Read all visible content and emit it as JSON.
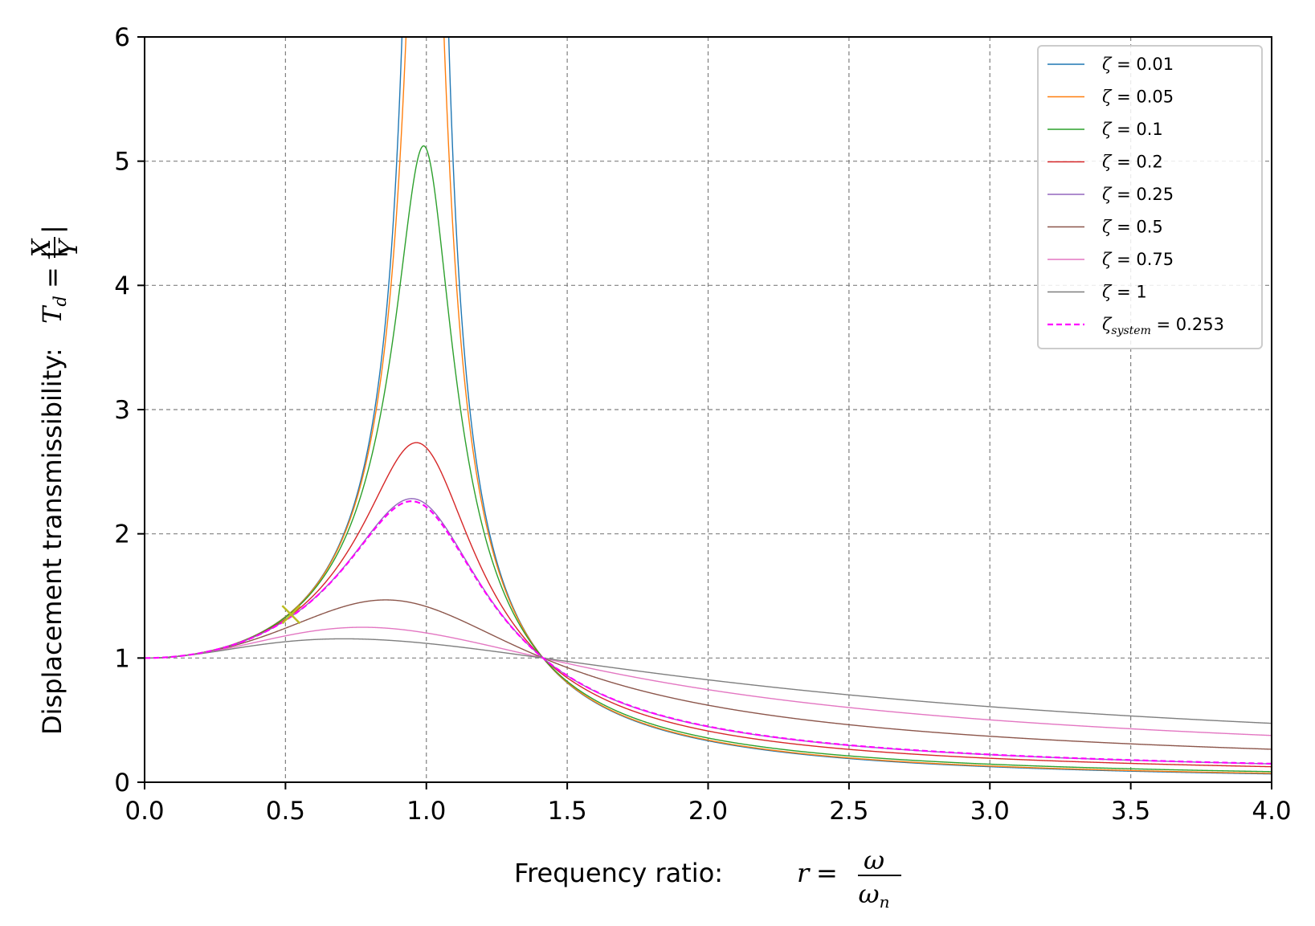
{
  "chart_data": {
    "type": "line",
    "xlabel": "Frequency ratio: r = ω/ω_n",
    "xlabel_text": "Frequency ratio: ",
    "ylabel": "Displacement transmissibility: T_d = |X/Y|",
    "ylabel_text": "Displacement transmissibility: ",
    "xlim": [
      0,
      4
    ],
    "ylim": [
      0,
      6
    ],
    "xticks": [
      "0.0",
      "0.5",
      "1.0",
      "1.5",
      "2.0",
      "2.5",
      "3.0",
      "3.5",
      "4.0"
    ],
    "yticks": [
      "0",
      "1",
      "2",
      "3",
      "4",
      "5",
      "6"
    ],
    "grid": true,
    "grid_style": "dashed",
    "legend_position": "top-right",
    "series": [
      {
        "name": "ζ = 0.01",
        "zeta": 0.01,
        "color": "#1f77b4",
        "dash": false
      },
      {
        "name": "ζ = 0.05",
        "zeta": 0.05,
        "color": "#ff7f0e",
        "dash": false
      },
      {
        "name": "ζ = 0.1",
        "zeta": 0.1,
        "color": "#2ca02c",
        "dash": false
      },
      {
        "name": "ζ = 0.2",
        "zeta": 0.2,
        "color": "#d62728",
        "dash": false
      },
      {
        "name": "ζ = 0.25",
        "zeta": 0.25,
        "color": "#9467bd",
        "dash": false
      },
      {
        "name": "ζ = 0.5",
        "zeta": 0.5,
        "color": "#8c564b",
        "dash": false
      },
      {
        "name": "ζ = 0.75",
        "zeta": 0.75,
        "color": "#e377c2",
        "dash": false
      },
      {
        "name": "ζ = 1",
        "zeta": 1.0,
        "color": "#7f7f7f",
        "dash": false
      },
      {
        "name": "ζ_system = 0.253",
        "zeta": 0.253,
        "color": "#ff00ff",
        "dash": true
      }
    ],
    "legend_labels": {
      "zeta_symbol": "ζ",
      "system_subscript": "system",
      "eq_prefix": " = "
    },
    "marker": {
      "type": "x",
      "x": 0.52,
      "y": 1.35,
      "color": "#bcbd22"
    }
  }
}
